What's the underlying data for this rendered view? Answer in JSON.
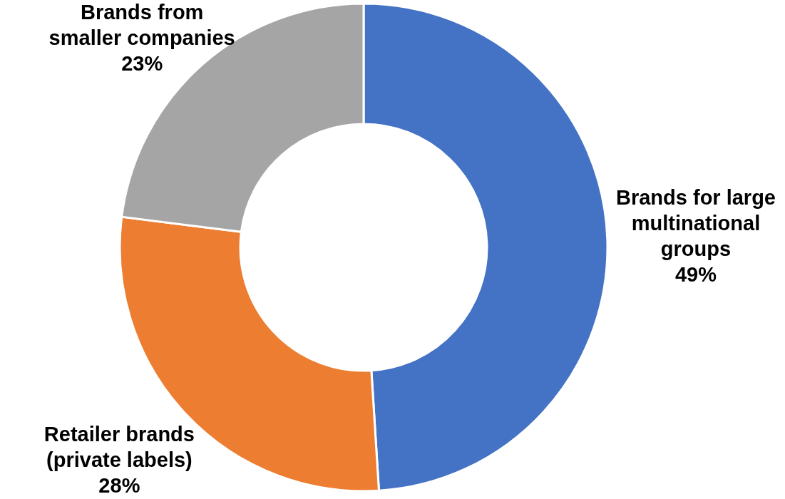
{
  "chart_data": {
    "type": "donut",
    "categories": [
      "Brands for large multinational groups",
      "Retailer brands (private labels)",
      "Brands from smaller companies"
    ],
    "values": [
      49,
      28,
      23
    ],
    "colors": [
      "#4472c4",
      "#ed7d31",
      "#a5a5a5"
    ],
    "value_labels": [
      "49%",
      "28%",
      "23%"
    ]
  }
}
